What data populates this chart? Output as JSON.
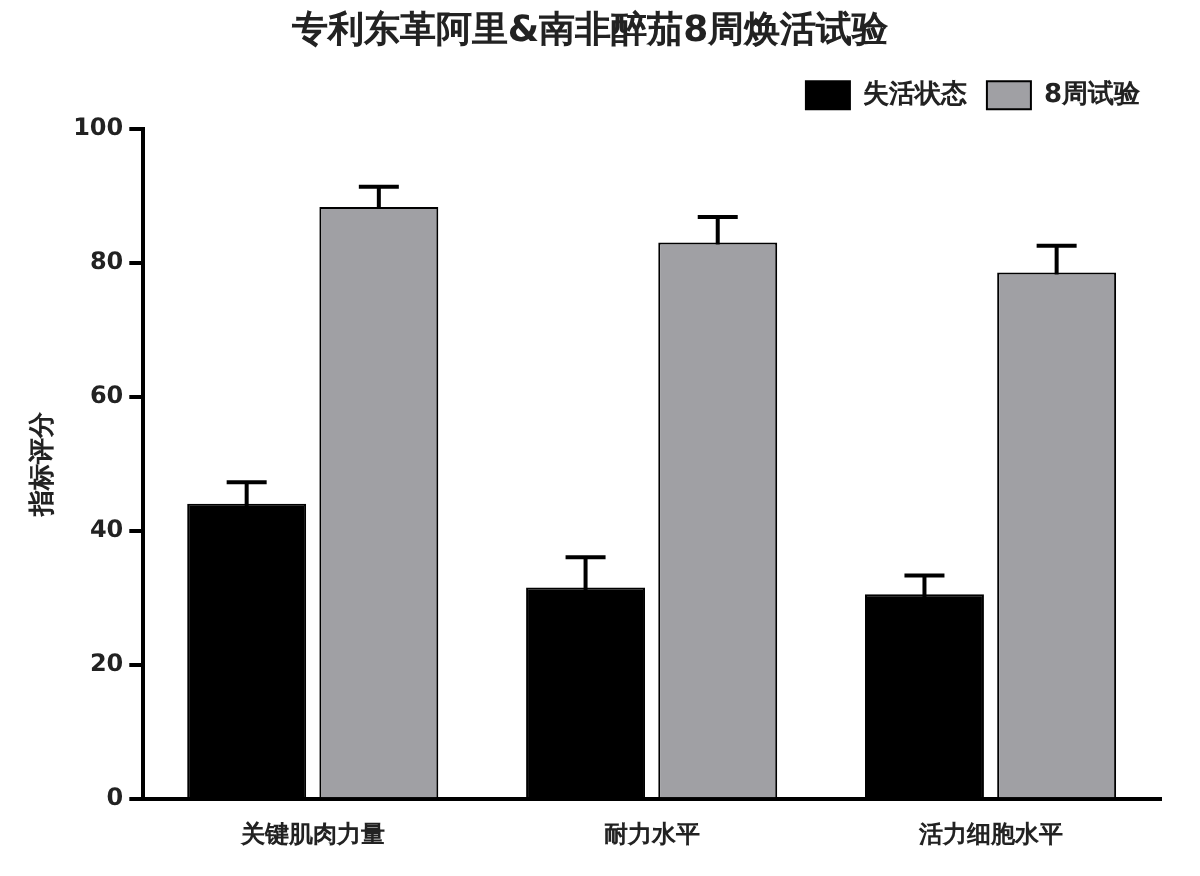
{
  "chart_data": {
    "type": "bar",
    "title": "专利东革阿里&南非醉茄8周焕活试验",
    "ylabel": "指标评分",
    "categories": [
      "关键肌肉力量",
      "耐力水平",
      "活力细胞水平"
    ],
    "series": [
      {
        "name": "失活状态",
        "color": "#000000",
        "values": [
          44.1,
          31.6,
          30.6
        ],
        "errors": [
          3.2,
          4.5,
          2.8
        ]
      },
      {
        "name": "8周试验",
        "color": "#a0a0a4",
        "values": [
          88.4,
          83.1,
          78.6
        ],
        "errors": [
          3,
          3.8,
          4
        ]
      }
    ],
    "ylim": [
      0,
      100
    ],
    "yticks": [
      0,
      20,
      40,
      60,
      80,
      100
    ],
    "grid": false,
    "legend": "top right"
  }
}
